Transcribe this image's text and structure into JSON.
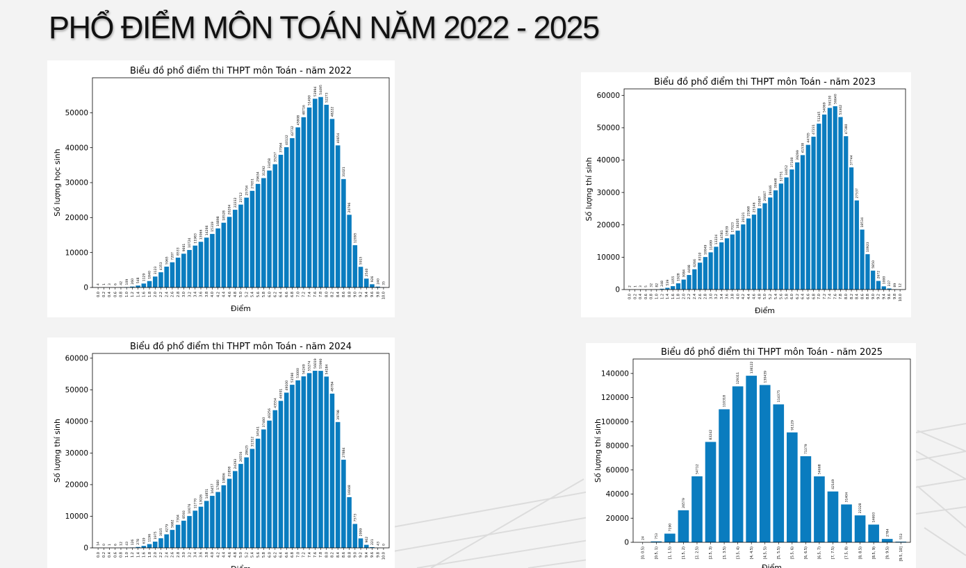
{
  "page": {
    "title": "PHỔ ĐIỂM MÔN TOÁN NĂM 2022 - 2025"
  },
  "chart_data": [
    {
      "type": "bar",
      "title": "Biểu đồ phổ điểm thi THPT môn Toán - năm 2022",
      "xlabel": "Điểm",
      "ylabel": "Số lượng học sinh",
      "ylim": [
        0,
        60000
      ],
      "yticks": [
        0,
        10000,
        20000,
        30000,
        40000,
        50000
      ],
      "categories": [
        "0.0",
        "0.2",
        "0.4",
        "0.6",
        "0.8",
        "1.0",
        "1.2",
        "1.4",
        "1.6",
        "1.8",
        "2.0",
        "2.2",
        "2.4",
        "2.6",
        "2.8",
        "3.0",
        "3.2",
        "3.4",
        "3.6",
        "3.8",
        "4.0",
        "4.2",
        "4.4",
        "4.6",
        "4.8",
        "5.0",
        "5.2",
        "5.4",
        "5.6",
        "5.8",
        "6.0",
        "6.2",
        "6.4",
        "6.6",
        "6.8",
        "7.0",
        "7.2",
        "7.4",
        "7.6",
        "7.8",
        "8.0",
        "8.2",
        "8.4",
        "8.6",
        "8.8",
        "9.0",
        "9.2",
        "9.4",
        "9.6",
        "9.8",
        "10.0"
      ],
      "values": [
        4,
        1,
        3,
        6,
        42,
        109,
        260,
        548,
        1129,
        1840,
        3123,
        4353,
        5965,
        7207,
        8533,
        9661,
        10724,
        11983,
        13066,
        14266,
        15319,
        16898,
        18528,
        20204,
        22232,
        23712,
        25704,
        27651,
        29634,
        31292,
        33458,
        35257,
        37964,
        40132,
        42732,
        45808,
        48716,
        51490,
        53994,
        54495,
        52273,
        48222,
        40654,
        31021,
        20796,
        12095,
        5915,
        2540,
        926,
        240,
        35
      ]
    },
    {
      "type": "bar",
      "title": "Biểu đồ phổ điểm thi THPT môn Toán - năm 2023",
      "xlabel": "Điểm",
      "ylabel": "Số lượng thí sinh",
      "ylim": [
        0,
        62000
      ],
      "yticks": [
        0,
        10000,
        20000,
        30000,
        40000,
        50000,
        60000
      ],
      "categories": [
        "0.0",
        "0.2",
        "0.4",
        "0.6",
        "0.8",
        "1.0",
        "1.2",
        "1.4",
        "1.6",
        "1.8",
        "2.0",
        "2.2",
        "2.4",
        "2.6",
        "2.8",
        "3.0",
        "3.2",
        "3.4",
        "3.6",
        "3.8",
        "4.0",
        "4.2",
        "4.4",
        "4.6",
        "4.8",
        "5.0",
        "5.2",
        "5.4",
        "5.6",
        "5.8",
        "6.0",
        "6.2",
        "6.4",
        "6.6",
        "6.8",
        "7.0",
        "7.2",
        "7.4",
        "7.6",
        "7.8",
        "8.0",
        "8.2",
        "8.4",
        "8.6",
        "8.8",
        "9.0",
        "9.2",
        "9.4",
        "9.6",
        "9.8",
        "10.0"
      ],
      "values": [
        2,
        1,
        3,
        5,
        32,
        82,
        248,
        539,
        1055,
        1928,
        3084,
        4498,
        6266,
        8310,
        10049,
        11499,
        13224,
        14581,
        15839,
        17023,
        18205,
        20121,
        21968,
        23146,
        25087,
        26667,
        28446,
        30648,
        32751,
        34652,
        37100,
        39299,
        41538,
        44705,
        47231,
        51245,
        54069,
        56130,
        56640,
        53302,
        47380,
        37744,
        27537,
        18534,
        10923,
        5850,
        2672,
        1000,
        337,
        89,
        12
      ]
    },
    {
      "type": "bar",
      "title": "Biểu đồ phổ điểm thi THPT môn Toán - năm 2024",
      "xlabel": "Điểm",
      "ylabel": "Số lượng thí sinh",
      "ylim": [
        0,
        61500
      ],
      "yticks": [
        0,
        10000,
        20000,
        30000,
        40000,
        50000,
        60000
      ],
      "categories": [
        "0.0",
        "0.2",
        "0.4",
        "0.6",
        "0.8",
        "1.0",
        "1.2",
        "1.4",
        "1.6",
        "1.8",
        "2.0",
        "2.2",
        "2.4",
        "2.6",
        "2.8",
        "3.0",
        "3.2",
        "3.4",
        "3.6",
        "3.8",
        "4.0",
        "4.2",
        "4.4",
        "4.6",
        "4.8",
        "5.0",
        "5.2",
        "5.4",
        "5.6",
        "5.8",
        "6.0",
        "6.2",
        "6.4",
        "6.6",
        "6.8",
        "7.0",
        "7.2",
        "7.4",
        "7.6",
        "7.8",
        "8.0",
        "8.2",
        "8.4",
        "8.6",
        "8.8",
        "9.0",
        "9.2",
        "9.4",
        "9.6",
        "9.8",
        "10.0"
      ],
      "values": [
        14,
        0,
        1,
        6,
        12,
        43,
        126,
        278,
        619,
        1196,
        1975,
        3035,
        4279,
        5682,
        7304,
        8593,
        10076,
        11770,
        13026,
        14851,
        16457,
        17680,
        19806,
        21858,
        24293,
        26556,
        28625,
        31312,
        34541,
        37460,
        40256,
        43554,
        46501,
        49100,
        51590,
        53000,
        54249,
        55274,
        56019,
        55990,
        54184,
        48784,
        39798,
        27884,
        16048,
        7573,
        2999,
        962,
        221,
        43,
        0
      ]
    },
    {
      "type": "bar",
      "title": "Biểu đồ phổ điểm thi THPT môn Toán - năm 2025",
      "xlabel": "Điểm",
      "ylabel": "Số lượng thí sinh",
      "ylim": [
        0,
        152000
      ],
      "yticks": [
        0,
        20000,
        40000,
        60000,
        80000,
        100000,
        120000,
        140000
      ],
      "categories": [
        "[0, 0.5)",
        "[0.5, 1)",
        "[1, 1.5)",
        "[1.5, 2)",
        "[2, 2.5)",
        "[2.5, 3)",
        "[3, 3.5)",
        "[3.5, 4)",
        "[4, 4.5)",
        "[4.5, 5)",
        "[5, 5.5)",
        "[5.5, 6)",
        "[6, 6.5)",
        "[6.5, 7)",
        "[7, 7.5)",
        "[7.5, 8)",
        "[8, 8.5)",
        "[8.5, 9)",
        "[9, 9.5)",
        "[9.5, 10]"
      ],
      "values": [
        24,
        753,
        7190,
        26579,
        54712,
        83242,
        110318,
        129311,
        138122,
        130439,
        114375,
        91129,
        71379,
        54668,
        42149,
        31404,
        22328,
        14693,
        2784,
        553
      ]
    }
  ],
  "colors": {
    "bar": "#0a7cbf",
    "background": "#f3f3f3",
    "panel": "#ffffff"
  }
}
